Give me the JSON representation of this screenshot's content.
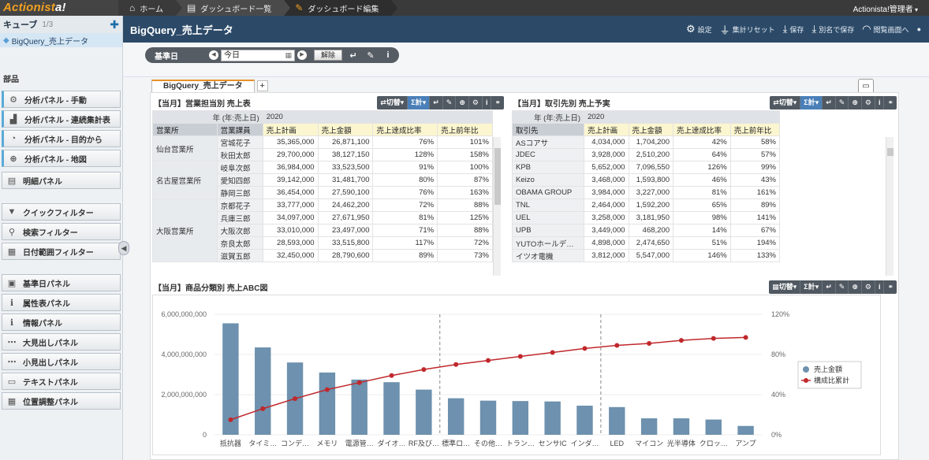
{
  "topbar": {
    "logo_a": "Actionist",
    "logo_b": "a!",
    "crumbs": [
      {
        "icon": "home-icon",
        "label": "ホーム"
      },
      {
        "icon": "dashboard-list-icon",
        "label": "ダッシュボード一覧"
      },
      {
        "icon": "pencil-icon",
        "label": "ダッシュボード編集"
      }
    ],
    "user": "Actionista!管理者"
  },
  "sidebar": {
    "cube_title": "キューブ",
    "cube_count": "1/3",
    "cube_item": "BigQuery_売上データ",
    "parts_label": "部品",
    "group1": [
      {
        "icon": "analysis-manual-icon",
        "label": "分析パネル - 手動"
      },
      {
        "icon": "analysis-linked-icon",
        "label": "分析パネル - 連続集計表"
      },
      {
        "icon": "analysis-goal-icon",
        "label": "分析パネル - 目的から"
      },
      {
        "icon": "globe-icon",
        "label": "分析パネル - 地図"
      }
    ],
    "detail": {
      "icon": "detail-panel-icon",
      "label": "明細パネル"
    },
    "group2": [
      {
        "icon": "filter-icon",
        "label": "クイックフィルター"
      },
      {
        "icon": "search-filter-icon",
        "label": "検索フィルター"
      },
      {
        "icon": "date-filter-icon",
        "label": "日付範囲フィルター"
      }
    ],
    "group3": [
      {
        "icon": "calendar-icon",
        "label": "基準日パネル"
      },
      {
        "icon": "info-icon",
        "label": "属性表パネル"
      },
      {
        "icon": "info-icon",
        "label": "情報パネル"
      },
      {
        "icon": "heading-icon",
        "label": "大見出しパネル"
      },
      {
        "icon": "heading-icon",
        "label": "小見出しパネル"
      },
      {
        "icon": "text-icon",
        "label": "テキストパネル"
      },
      {
        "icon": "layout-icon",
        "label": "位置調整パネル"
      }
    ]
  },
  "header": {
    "title": "BigQuery_売上データ",
    "actions": [
      {
        "icon": "gear-icon",
        "label": "設定"
      },
      {
        "icon": "reset-icon",
        "label": "集計リセット"
      },
      {
        "icon": "save-icon",
        "label": "保存"
      },
      {
        "icon": "save-as-icon",
        "label": "別名で保存"
      },
      {
        "icon": "view-icon",
        "label": "閲覧画面へ"
      }
    ]
  },
  "filter": {
    "label": "基準日",
    "date_value": "今日",
    "clear_label": "解除"
  },
  "tabs": {
    "active": "BigQuery_売上データ",
    "plus": "+"
  },
  "toolbar": {
    "switch": "切替",
    "sum": "Σ計"
  },
  "panel1": {
    "title": "【当月】営業担当別 売上表",
    "year_label": "年 (年:売上日)",
    "year": "2020",
    "cols": [
      "営業所",
      "営業課員",
      "売上計画",
      "売上金額",
      "売上達成比率",
      "売上前年比"
    ],
    "offices": [
      {
        "name": "仙台営業所",
        "rows": 2
      },
      {
        "name": "名古屋営業所",
        "rows": 3
      },
      {
        "name": "大阪営業所",
        "rows": 5
      }
    ],
    "rows": [
      [
        "宮城花子",
        "35,365,000",
        "26,871,100",
        "76%",
        "101%"
      ],
      [
        "秋田太郎",
        "29,700,000",
        "38,127,150",
        "128%",
        "158%"
      ],
      [
        "岐阜次郎",
        "36,984,000",
        "33,523,500",
        "91%",
        "100%"
      ],
      [
        "愛知四郎",
        "39,142,000",
        "31,481,700",
        "80%",
        "87%"
      ],
      [
        "静岡三郎",
        "36,454,000",
        "27,590,100",
        "76%",
        "163%"
      ],
      [
        "京都花子",
        "33,777,000",
        "24,462,200",
        "72%",
        "88%"
      ],
      [
        "兵庫三郎",
        "34,097,000",
        "27,671,950",
        "81%",
        "125%"
      ],
      [
        "大阪次郎",
        "33,010,000",
        "23,497,000",
        "71%",
        "88%"
      ],
      [
        "奈良太郎",
        "28,593,000",
        "33,515,800",
        "117%",
        "72%"
      ],
      [
        "滋賀五郎",
        "32,450,000",
        "28,790,600",
        "89%",
        "73%"
      ]
    ]
  },
  "panel2": {
    "title": "【当月】取引先別 売上予実",
    "year_label": "年 (年:売上日)",
    "year": "2020",
    "cols": [
      "取引先",
      "売上計画",
      "売上金額",
      "売上達成比率",
      "売上前年比"
    ],
    "rows": [
      [
        "ASコアサ",
        "4,034,000",
        "1,704,200",
        "42%",
        "58%"
      ],
      [
        "JDEC",
        "3,928,000",
        "2,510,200",
        "64%",
        "57%"
      ],
      [
        "KPB",
        "5,652,000",
        "7,096,550",
        "126%",
        "99%"
      ],
      [
        "Keizo",
        "3,468,000",
        "1,593,800",
        "46%",
        "43%"
      ],
      [
        "OBAMA GROUP",
        "3,984,000",
        "3,227,000",
        "81%",
        "161%"
      ],
      [
        "TNL",
        "2,464,000",
        "1,592,200",
        "65%",
        "89%"
      ],
      [
        "UEL",
        "3,258,000",
        "3,181,950",
        "98%",
        "141%"
      ],
      [
        "UPB",
        "3,449,000",
        "468,200",
        "14%",
        "67%"
      ],
      [
        "YUTOホールデ…",
        "4,898,000",
        "2,474,650",
        "51%",
        "194%"
      ],
      [
        "イツオ電機",
        "3,812,000",
        "5,547,000",
        "146%",
        "133%"
      ]
    ]
  },
  "panel3": {
    "title": "【当月】商品分類別 売上ABC図"
  },
  "chart_data": {
    "type": "bar",
    "title": "【当月】商品分類別 売上ABC図",
    "categories": [
      "抵抗器",
      "タイミ…",
      "コンデ…",
      "メモリ",
      "電源管…",
      "ダイオ…",
      "RF及び…",
      "標準ロ…",
      "その他…",
      "トラン…",
      "センサIC",
      "インダ…",
      "LED",
      "マイコン",
      "光半導体",
      "クロッ…",
      "アンプ"
    ],
    "series": [
      {
        "name": "売上金額",
        "axis": "left",
        "values": [
          5550000000,
          4350000000,
          3600000000,
          3100000000,
          2750000000,
          2620000000,
          2250000000,
          1820000000,
          1700000000,
          1680000000,
          1660000000,
          1450000000,
          1380000000,
          820000000,
          820000000,
          760000000,
          440000000
        ]
      },
      {
        "name": "構成比累計",
        "axis": "right",
        "values": [
          15,
          26,
          36,
          45,
          52,
          59,
          65,
          70,
          74,
          78,
          82,
          86,
          89,
          91,
          94,
          96,
          97
        ]
      }
    ],
    "left_axis": {
      "ylim": [
        0,
        6000000000
      ],
      "ticks": [
        "0",
        "2,000,000,000",
        "4,000,000,000",
        "6,000,000,000"
      ]
    },
    "right_axis": {
      "ylim": [
        0,
        120
      ],
      "ticks": [
        "0%",
        "40%",
        "80%",
        "120%"
      ]
    },
    "abc_dividers_after": [
      6,
      11
    ],
    "legend": "right",
    "colors": {
      "bar": "#6d91ae",
      "line": "#c0282c"
    }
  }
}
